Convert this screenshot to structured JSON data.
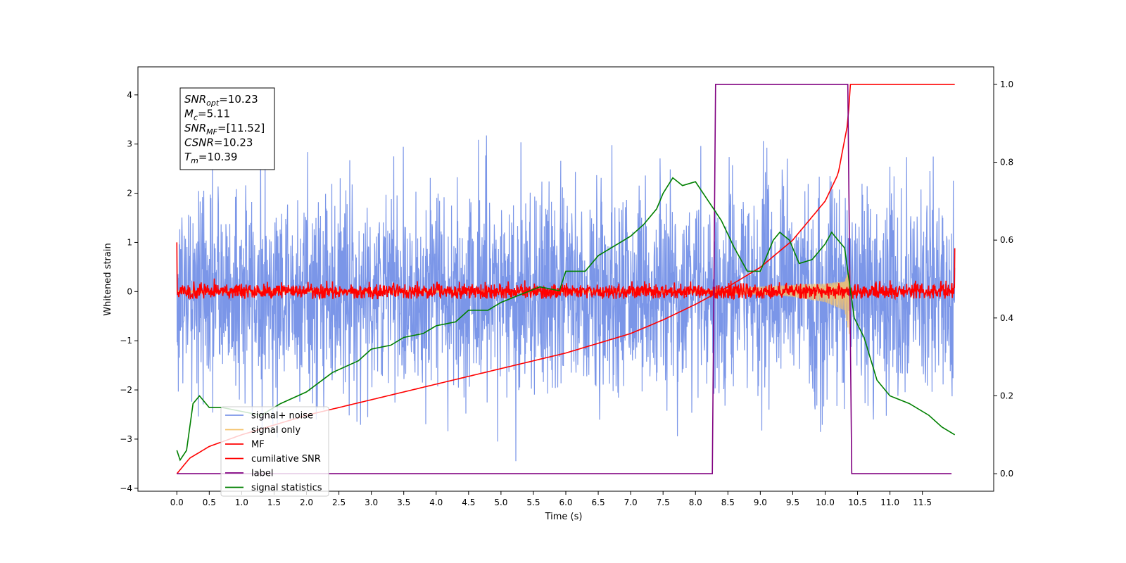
{
  "chart_data": {
    "type": "line",
    "xlabel": "Time (s)",
    "ylabel_left": "Whitened strain",
    "ylabel_right": "",
    "xlim": [
      -0.6,
      12.6
    ],
    "ylim_left": [
      -4.06,
      4.57
    ],
    "ylim_right": [
      -0.045,
      1.045
    ],
    "x_ticks": [
      "0.0",
      "0.5",
      "1.0",
      "1.5",
      "2.0",
      "2.5",
      "3.0",
      "3.5",
      "4.0",
      "4.5",
      "5.0",
      "5.5",
      "6.0",
      "6.5",
      "7.0",
      "7.5",
      "8.0",
      "8.5",
      "9.0",
      "9.5",
      "10.0",
      "10.5",
      "11.0",
      "11.5"
    ],
    "y_ticks_left": [
      "4",
      "3",
      "2",
      "1",
      "0",
      "−1",
      "−2",
      "−3",
      "−4"
    ],
    "y_ticks_right": [
      "1.0",
      "0.8",
      "0.6",
      "0.4",
      "0.2",
      "0.0"
    ],
    "grid": false,
    "legend_position": "lower-left",
    "annotation": {
      "lines": [
        {
          "base": "SNR",
          "sub": "opt",
          "text": "=10.23"
        },
        {
          "base": "M",
          "sub": "c",
          "text": "=5.11"
        },
        {
          "base": "SNR",
          "sub": "MF",
          "text": "=[11.52]"
        },
        {
          "base": "CSNR",
          "sub": "",
          "text": "=10.23"
        },
        {
          "base": "T",
          "sub": "m",
          "text": "=10.39"
        }
      ]
    },
    "series": [
      {
        "name": "signal+ noise",
        "color": "#7b96e8",
        "axis": "left",
        "kind": "noise",
        "t_range": [
          0.0,
          12.0
        ],
        "std": 1.05,
        "range": [
          -3.65,
          4.2
        ]
      },
      {
        "name": "signal only",
        "color": "#f5c26b",
        "axis": "left",
        "kind": "chirp_envelope",
        "t_range": [
          0.0,
          10.39
        ],
        "envelope": [
          [
            7.5,
            0.02
          ],
          [
            8.0,
            0.04
          ],
          [
            8.5,
            0.07
          ],
          [
            9.0,
            0.1
          ],
          [
            9.5,
            0.14
          ],
          [
            10.0,
            0.22
          ],
          [
            10.3,
            0.38
          ],
          [
            10.39,
            1.0
          ]
        ]
      },
      {
        "name": "MF",
        "color": "#ff0000",
        "axis": "left",
        "kind": "noise",
        "t_range": [
          0.0,
          12.0
        ],
        "std": 0.08,
        "range": [
          -0.15,
          0.4
        ],
        "edges": [
          [
            0.0,
            1.0
          ],
          [
            12.0,
            0.88
          ]
        ]
      },
      {
        "name": "cumilative SNR",
        "color": "#ff0000",
        "axis": "right",
        "points": [
          [
            0.0,
            0.0
          ],
          [
            0.2,
            0.04
          ],
          [
            0.5,
            0.07
          ],
          [
            1.0,
            0.1
          ],
          [
            2.0,
            0.15
          ],
          [
            3.0,
            0.19
          ],
          [
            4.0,
            0.23
          ],
          [
            5.0,
            0.27
          ],
          [
            6.0,
            0.31
          ],
          [
            6.5,
            0.335
          ],
          [
            7.0,
            0.36
          ],
          [
            7.5,
            0.395
          ],
          [
            8.0,
            0.435
          ],
          [
            8.5,
            0.48
          ],
          [
            9.0,
            0.53
          ],
          [
            9.5,
            0.6
          ],
          [
            10.0,
            0.7
          ],
          [
            10.2,
            0.77
          ],
          [
            10.35,
            0.9
          ],
          [
            10.39,
            1.0
          ],
          [
            12.0,
            1.0
          ]
        ]
      },
      {
        "name": "label",
        "color": "#800080",
        "axis": "right",
        "points": [
          [
            0.0,
            0.0
          ],
          [
            8.26,
            0.0
          ],
          [
            8.31,
            1.0
          ],
          [
            10.35,
            1.0
          ],
          [
            10.41,
            0.0
          ],
          [
            11.95,
            0.0
          ]
        ]
      },
      {
        "name": "signal statistics",
        "color": "#008000",
        "axis": "right",
        "points": [
          [
            0.0,
            0.06
          ],
          [
            0.05,
            0.035
          ],
          [
            0.15,
            0.06
          ],
          [
            0.25,
            0.18
          ],
          [
            0.35,
            0.2
          ],
          [
            0.5,
            0.17
          ],
          [
            0.7,
            0.17
          ],
          [
            1.0,
            0.16
          ],
          [
            1.3,
            0.15
          ],
          [
            1.6,
            0.18
          ],
          [
            2.0,
            0.21
          ],
          [
            2.4,
            0.26
          ],
          [
            2.8,
            0.29
          ],
          [
            3.0,
            0.32
          ],
          [
            3.3,
            0.33
          ],
          [
            3.5,
            0.35
          ],
          [
            3.8,
            0.36
          ],
          [
            4.0,
            0.38
          ],
          [
            4.3,
            0.39
          ],
          [
            4.5,
            0.42
          ],
          [
            4.8,
            0.42
          ],
          [
            5.0,
            0.44
          ],
          [
            5.3,
            0.46
          ],
          [
            5.6,
            0.48
          ],
          [
            5.9,
            0.47
          ],
          [
            6.0,
            0.52
          ],
          [
            6.3,
            0.52
          ],
          [
            6.5,
            0.56
          ],
          [
            6.7,
            0.58
          ],
          [
            7.0,
            0.61
          ],
          [
            7.2,
            0.64
          ],
          [
            7.4,
            0.68
          ],
          [
            7.5,
            0.72
          ],
          [
            7.65,
            0.76
          ],
          [
            7.8,
            0.74
          ],
          [
            8.0,
            0.75
          ],
          [
            8.2,
            0.7
          ],
          [
            8.4,
            0.65
          ],
          [
            8.6,
            0.58
          ],
          [
            8.8,
            0.52
          ],
          [
            9.0,
            0.52
          ],
          [
            9.2,
            0.6
          ],
          [
            9.3,
            0.62
          ],
          [
            9.45,
            0.6
          ],
          [
            9.6,
            0.54
          ],
          [
            9.8,
            0.55
          ],
          [
            10.0,
            0.59
          ],
          [
            10.1,
            0.62
          ],
          [
            10.3,
            0.58
          ],
          [
            10.45,
            0.4
          ],
          [
            10.6,
            0.35
          ],
          [
            10.8,
            0.24
          ],
          [
            11.0,
            0.2
          ],
          [
            11.3,
            0.18
          ],
          [
            11.6,
            0.15
          ],
          [
            11.8,
            0.12
          ],
          [
            12.0,
            0.1
          ]
        ]
      }
    ]
  }
}
